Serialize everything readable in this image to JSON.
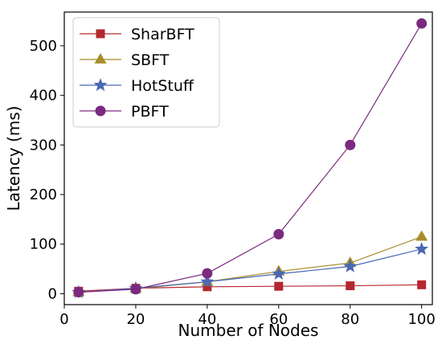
{
  "chart_data": {
    "type": "line",
    "xlabel": "Number of Nodes",
    "ylabel": "Latency (ms)",
    "xlim": [
      0,
      103
    ],
    "ylim": [
      -22,
      568
    ],
    "xticks": [
      0,
      20,
      40,
      60,
      80,
      100
    ],
    "yticks": [
      0,
      100,
      200,
      300,
      400,
      500
    ],
    "grid": false,
    "legend_position": "top-left",
    "series": [
      {
        "name": "SharBFT",
        "color": "#b5272f",
        "marker": "square",
        "x": [
          4,
          20,
          40,
          60,
          80,
          100
        ],
        "y": [
          5,
          11,
          14,
          15,
          16,
          18
        ]
      },
      {
        "name": "SBFT",
        "color": "#a88d2a",
        "marker": "triangle",
        "x": [
          4,
          20,
          40,
          60,
          80,
          100
        ],
        "y": [
          3,
          10,
          24,
          45,
          62,
          115
        ]
      },
      {
        "name": "HotStuff",
        "color": "#4a68b4",
        "marker": "star",
        "x": [
          4,
          20,
          40,
          60,
          80,
          100
        ],
        "y": [
          3,
          11,
          24,
          40,
          55,
          90
        ]
      },
      {
        "name": "PBFT",
        "color": "#7b2a80",
        "marker": "circle",
        "x": [
          4,
          20,
          40,
          60,
          80,
          100
        ],
        "y": [
          3,
          9,
          41,
          120,
          300,
          545
        ]
      }
    ]
  }
}
